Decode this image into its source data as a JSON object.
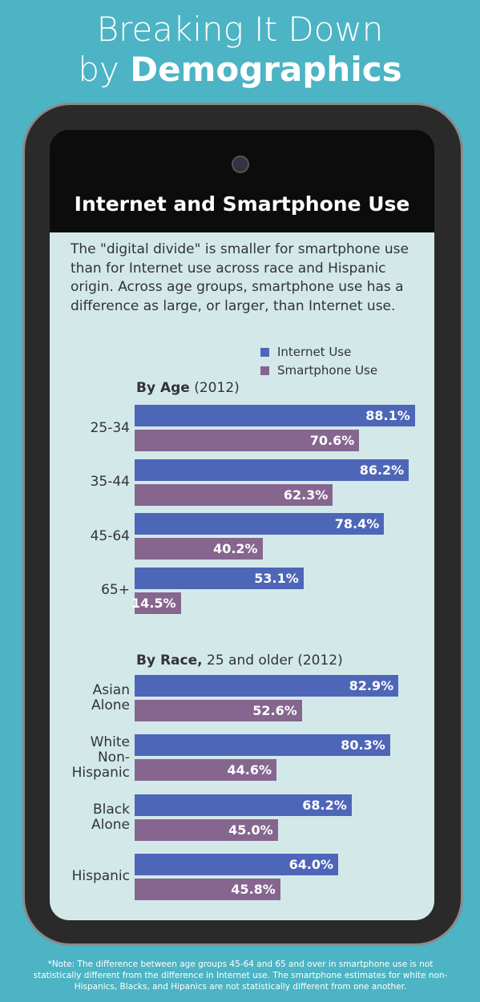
{
  "header": {
    "line1": "Breaking It Down",
    "line2_prefix": "by",
    "line2_bold": "Demographics"
  },
  "panel_title": "Internet and Smartphone Use",
  "description": "The \"digital divide\" is smaller for smartphone use than for Internet use across race and Hispanic origin.  Across age groups, smartphone use has a difference as large, or larger, than Internet use.",
  "chart_data": [
    {
      "type": "bar",
      "orientation": "horizontal",
      "title_bold": "By Age",
      "title_rest": "(2012)",
      "categories": [
        "25-34",
        "35-44",
        "45-64",
        "65+"
      ],
      "series": [
        {
          "name": "Internet Use",
          "color": "#4e66b8",
          "values": [
            88.1,
            86.2,
            78.4,
            53.1
          ],
          "value_labels": [
            "88.1%",
            "86.2%",
            "78.4%",
            "53.1%"
          ]
        },
        {
          "name": "Smartphone Use",
          "color": "#86668f",
          "values": [
            70.6,
            62.3,
            40.2,
            14.5
          ],
          "value_labels": [
            "70.6%",
            "62.3%",
            "40.2%",
            "14.5%"
          ]
        }
      ]
    },
    {
      "type": "bar",
      "orientation": "horizontal",
      "title_bold": "By Race,",
      "title_rest": "25 and older (2012)",
      "categories": [
        "Asian Alone",
        "White Non-Hispanic",
        "Black Alone",
        "Hispanic"
      ],
      "series": [
        {
          "color": "#4e66b8",
          "values": [
            82.9,
            80.3,
            68.2,
            64.0
          ],
          "value_labels": [
            "82.9%",
            "80.3%",
            "68.2%",
            "64.0%"
          ]
        },
        {
          "color": "#86668f",
          "values": [
            52.6,
            44.6,
            45.0,
            45.8
          ],
          "value_labels": [
            "52.6%",
            "44.6%",
            "45.0%",
            "45.8%"
          ]
        }
      ]
    }
  ],
  "note": "*Note: The difference between age groups 45-64 and 65 and over in smartphone use is not statistically different from the difference in Internet use.  The smartphone estimates for white non-Hispanics, Blacks, and Hipanics are not statistically different from one another."
}
